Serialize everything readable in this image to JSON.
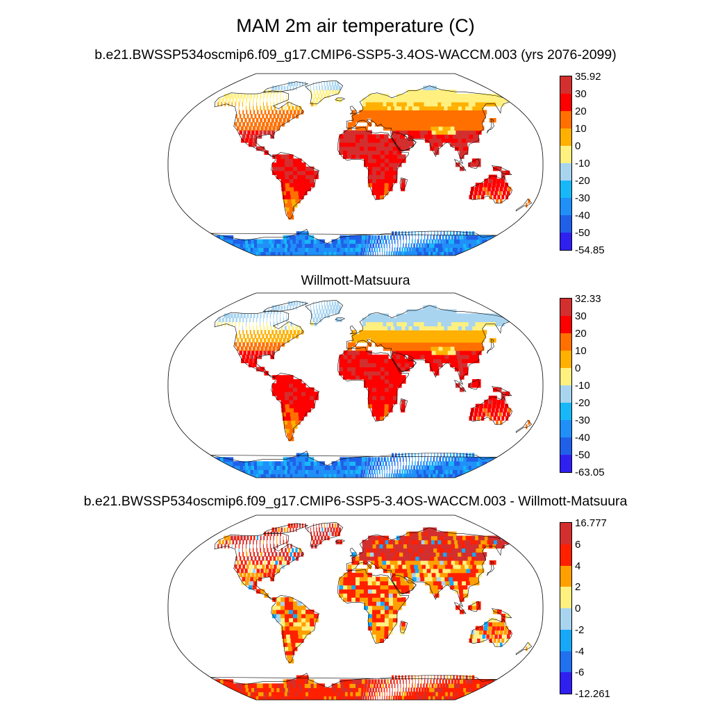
{
  "title": "MAM 2m air temperature (C)",
  "panels": [
    {
      "id": "model",
      "title": "b.e21.BWSSP534oscmip6.f09_g17.CMIP6-SSP5-3.4OS-WACCM.003 (yrs 2076-2099)",
      "colorbar": {
        "labels": [
          "35.92",
          "30",
          "20",
          "10",
          "0",
          "-10",
          "-20",
          "-30",
          "-40",
          "-50",
          "-54.85"
        ],
        "colors": [
          "#d32f2f",
          "#ff0000",
          "#ff7000",
          "#ffb000",
          "#fff080",
          "#a8d4f0",
          "#18b8f8",
          "#2090f8",
          "#2060e8",
          "#3020f0"
        ]
      }
    },
    {
      "id": "obs",
      "title": "Willmott-Matsuura",
      "colorbar": {
        "labels": [
          "32.33",
          "30",
          "20",
          "10",
          "0",
          "-10",
          "-20",
          "-30",
          "-40",
          "-50",
          "-63.05"
        ],
        "colors": [
          "#d32f2f",
          "#ff0000",
          "#ff7000",
          "#ffb000",
          "#fff080",
          "#a8d4f0",
          "#18b8f8",
          "#2090f8",
          "#2060e8",
          "#3020f0"
        ]
      }
    },
    {
      "id": "diff",
      "title": "b.e21.BWSSP534oscmip6.f09_g17.CMIP6-SSP5-3.4OS-WACCM.003 - Willmott-Matsuura",
      "colorbar": {
        "labels": [
          "16.777",
          "6",
          "4",
          "2",
          "0",
          "-2",
          "-4",
          "-6",
          "-12.261"
        ],
        "colors": [
          "#d32f2f",
          "#ff2000",
          "#ffa000",
          "#fff080",
          "#a8d4f0",
          "#18a8f8",
          "#2070f0",
          "#3020f0"
        ]
      }
    }
  ]
}
